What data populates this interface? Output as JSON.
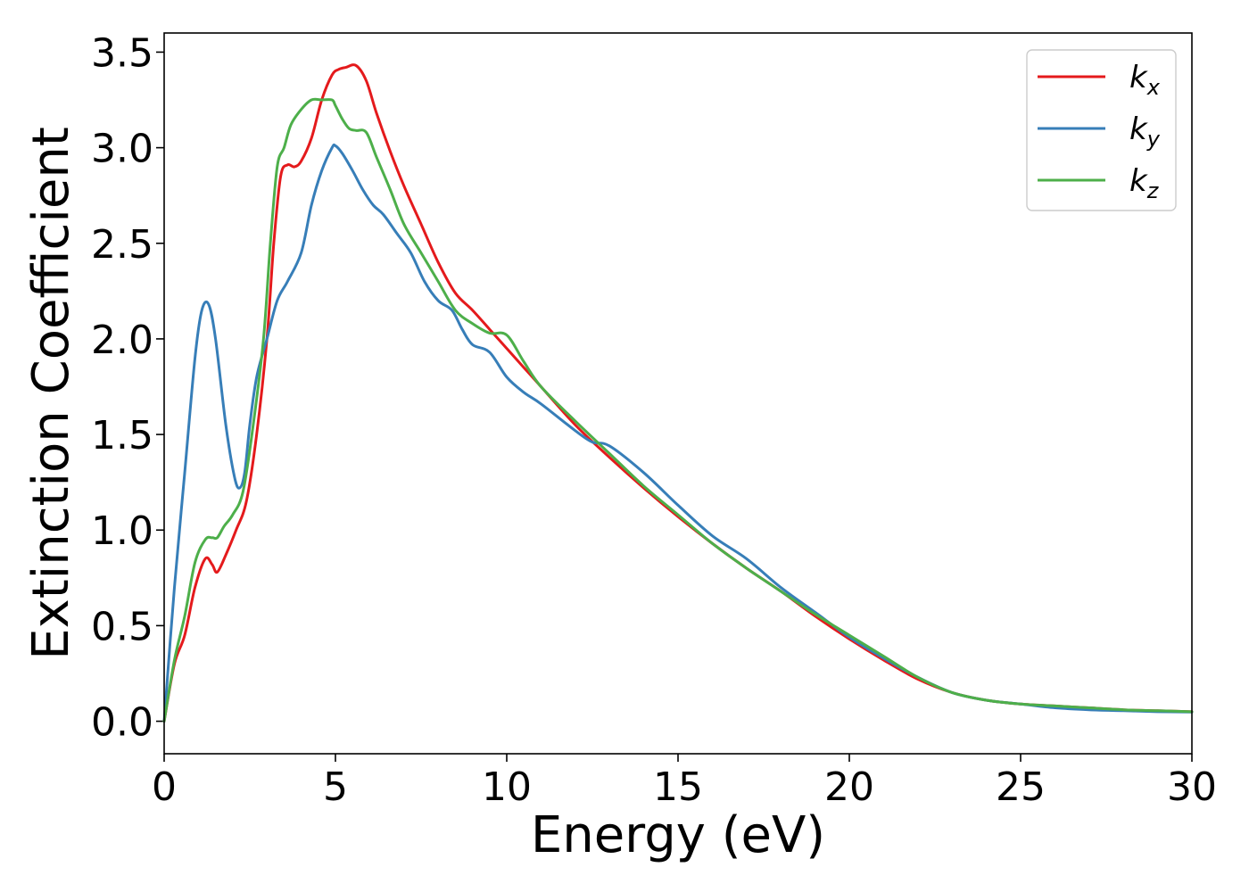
{
  "chart_data": {
    "type": "line",
    "title": "",
    "xlabel": "Energy (eV)",
    "ylabel": "Extinction Coefficient",
    "xlim": [
      0,
      30
    ],
    "ylim": [
      -0.17,
      3.6
    ],
    "xticks": [
      0,
      5,
      10,
      15,
      20,
      25,
      30
    ],
    "xtick_labels": [
      "0",
      "5",
      "10",
      "15",
      "20",
      "25",
      "30"
    ],
    "yticks": [
      0.0,
      0.5,
      1.0,
      1.5,
      2.0,
      2.5,
      3.0,
      3.5
    ],
    "ytick_labels": [
      "0.0",
      "0.5",
      "1.0",
      "1.5",
      "2.0",
      "2.5",
      "3.0",
      "3.5"
    ],
    "grid": false,
    "legend_position": "top-right",
    "series": [
      {
        "name": "k",
        "subscript": "x",
        "color": "#e41a1c",
        "x": [
          0,
          0.3,
          0.6,
          0.9,
          1.2,
          1.4,
          1.55,
          1.8,
          2.1,
          2.4,
          2.7,
          3.0,
          3.2,
          3.4,
          3.6,
          3.8,
          4.0,
          4.3,
          4.6,
          4.9,
          5.1,
          5.3,
          5.6,
          5.9,
          6.2,
          6.6,
          7.0,
          7.5,
          8.0,
          8.5,
          9.0,
          9.5,
          10.0,
          10.5,
          11.0,
          12.0,
          13.0,
          14.0,
          15.0,
          16.0,
          17.0,
          18.0,
          19.0,
          20.0,
          21.0,
          22.0,
          23.0,
          24.0,
          25.0,
          26.0,
          27.0,
          28.0,
          29.0,
          30.0
        ],
        "y": [
          0.0,
          0.3,
          0.45,
          0.7,
          0.85,
          0.82,
          0.78,
          0.87,
          1.0,
          1.15,
          1.5,
          2.0,
          2.5,
          2.85,
          2.91,
          2.9,
          2.93,
          3.05,
          3.25,
          3.38,
          3.41,
          3.42,
          3.43,
          3.35,
          3.18,
          2.98,
          2.8,
          2.6,
          2.4,
          2.24,
          2.15,
          2.05,
          1.95,
          1.85,
          1.75,
          1.55,
          1.38,
          1.22,
          1.07,
          0.93,
          0.8,
          0.68,
          0.55,
          0.43,
          0.32,
          0.22,
          0.15,
          0.11,
          0.09,
          0.08,
          0.07,
          0.06,
          0.055,
          0.05
        ]
      },
      {
        "name": "k",
        "subscript": "y",
        "color": "#377eb8",
        "x": [
          0,
          0.3,
          0.6,
          0.9,
          1.1,
          1.3,
          1.5,
          1.8,
          2.05,
          2.2,
          2.35,
          2.5,
          2.7,
          3.0,
          3.3,
          3.6,
          4.0,
          4.3,
          4.6,
          4.9,
          5.0,
          5.2,
          5.5,
          5.8,
          6.1,
          6.4,
          6.8,
          7.2,
          7.6,
          8.0,
          8.4,
          8.7,
          9.0,
          9.5,
          10.0,
          10.5,
          11.0,
          12.0,
          12.5,
          13.0,
          14.0,
          15.0,
          16.0,
          17.0,
          18.0,
          19.0,
          20.0,
          21.0,
          22.0,
          23.0,
          24.0,
          25.0,
          26.0,
          27.0,
          28.0,
          29.0,
          30.0
        ],
        "y": [
          0.0,
          0.7,
          1.3,
          1.9,
          2.15,
          2.18,
          2.0,
          1.55,
          1.28,
          1.22,
          1.3,
          1.55,
          1.8,
          2.0,
          2.2,
          2.3,
          2.45,
          2.7,
          2.88,
          3.0,
          3.01,
          2.97,
          2.88,
          2.78,
          2.7,
          2.65,
          2.55,
          2.45,
          2.3,
          2.2,
          2.15,
          2.05,
          1.97,
          1.93,
          1.8,
          1.72,
          1.66,
          1.52,
          1.46,
          1.44,
          1.3,
          1.13,
          0.97,
          0.85,
          0.7,
          0.57,
          0.44,
          0.33,
          0.23,
          0.15,
          0.11,
          0.09,
          0.07,
          0.06,
          0.055,
          0.05,
          0.048
        ]
      },
      {
        "name": "k",
        "subscript": "z",
        "color": "#4daf4a",
        "x": [
          0,
          0.3,
          0.6,
          0.9,
          1.2,
          1.4,
          1.55,
          1.75,
          2.0,
          2.3,
          2.6,
          2.9,
          3.1,
          3.3,
          3.5,
          3.7,
          4.0,
          4.3,
          4.6,
          4.9,
          5.0,
          5.2,
          5.4,
          5.6,
          5.9,
          6.2,
          6.6,
          7.0,
          7.5,
          8.0,
          8.5,
          9.0,
          9.5,
          10.0,
          10.5,
          11.0,
          12.0,
          13.0,
          14.0,
          15.0,
          16.0,
          17.0,
          18.0,
          19.0,
          20.0,
          21.0,
          22.0,
          23.0,
          24.0,
          25.0,
          26.0,
          27.0,
          28.0,
          29.0,
          30.0
        ],
        "y": [
          0.0,
          0.32,
          0.55,
          0.83,
          0.95,
          0.96,
          0.96,
          1.02,
          1.08,
          1.2,
          1.55,
          2.0,
          2.5,
          2.9,
          3.0,
          3.12,
          3.2,
          3.25,
          3.25,
          3.25,
          3.22,
          3.15,
          3.1,
          3.09,
          3.08,
          2.95,
          2.78,
          2.6,
          2.45,
          2.3,
          2.15,
          2.08,
          2.03,
          2.02,
          1.88,
          1.75,
          1.57,
          1.4,
          1.23,
          1.08,
          0.93,
          0.8,
          0.68,
          0.56,
          0.45,
          0.34,
          0.23,
          0.15,
          0.11,
          0.09,
          0.08,
          0.07,
          0.06,
          0.055,
          0.05
        ]
      }
    ]
  }
}
